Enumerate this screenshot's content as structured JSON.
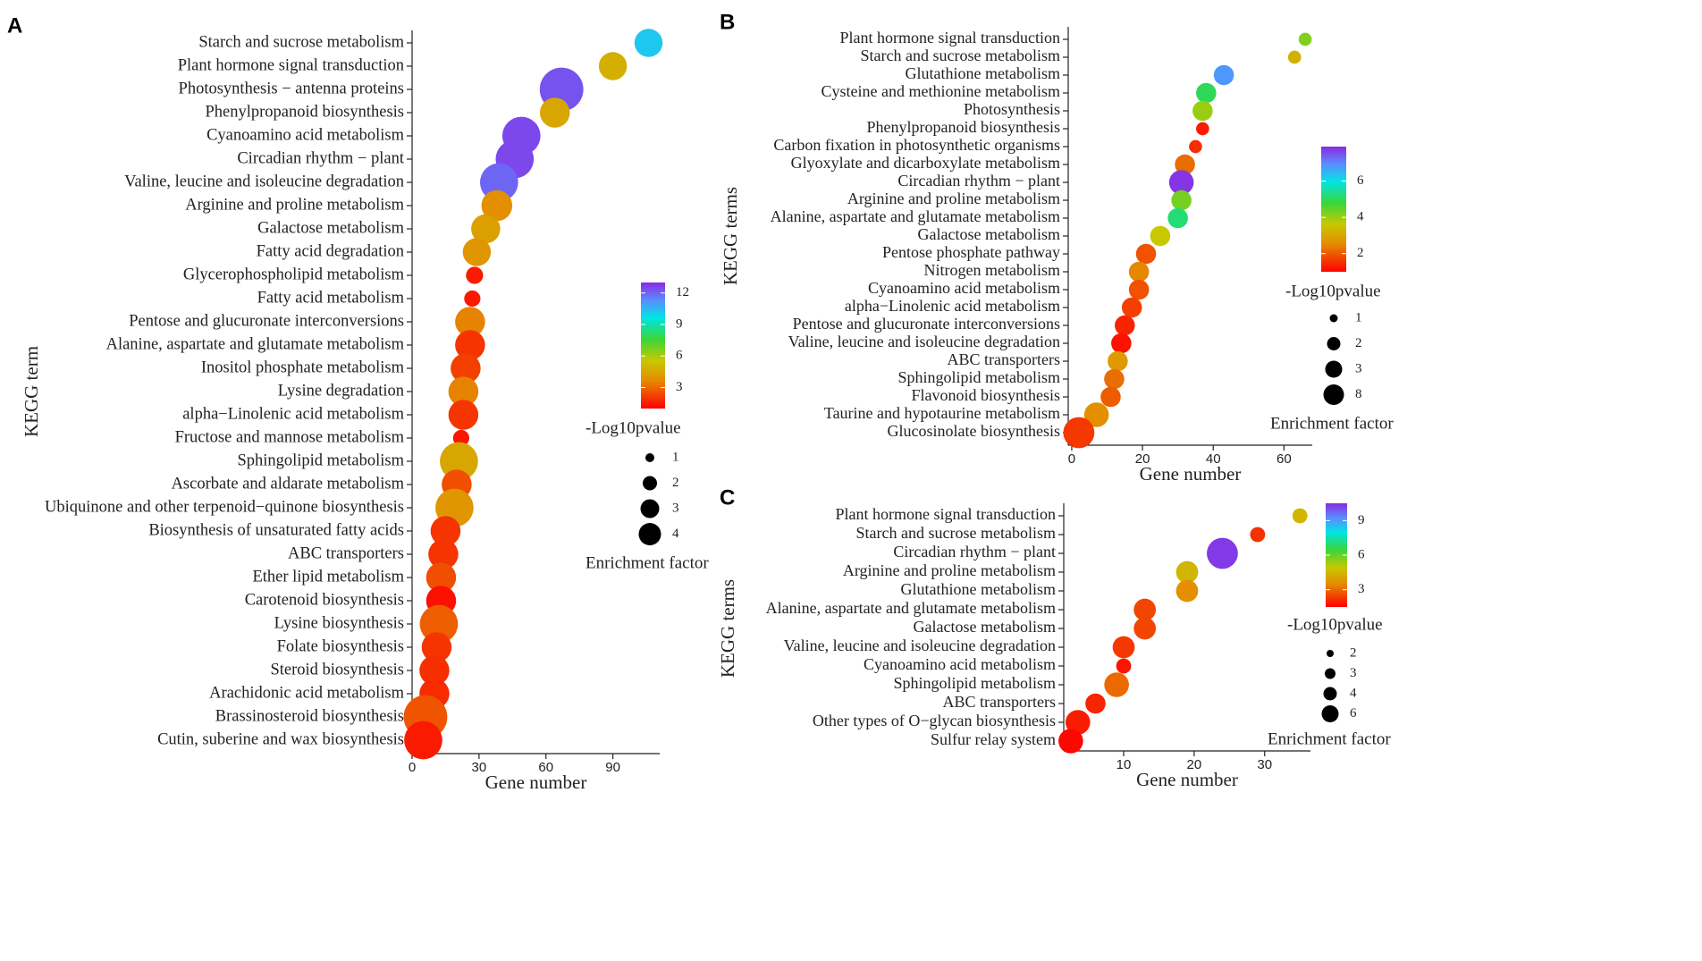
{
  "colors": {
    "scale": [
      "#ff0000",
      "#e58a00",
      "#c8c800",
      "#39d639",
      "#00e5e5",
      "#5a8cff",
      "#8a2be2"
    ]
  },
  "legend_titles": {
    "color": "-Log10pvalue",
    "size": "Enrichment factor"
  },
  "chart_data": [
    {
      "panel": "A",
      "type": "scatter",
      "xlabel": "Gene number",
      "ylabel": "KEGG term",
      "xlim": [
        0,
        111
      ],
      "xticks": [
        0,
        30,
        60,
        90
      ],
      "color_range": [
        1.0,
        13.0
      ],
      "color_ticks": [
        3,
        6,
        9,
        12
      ],
      "size_legend": [
        1,
        2,
        3,
        4
      ],
      "points": [
        {
          "term": "Starch and sucrose metabolism",
          "x": 106,
          "c": 10.2,
          "s": 2.3
        },
        {
          "term": "Plant hormone signal transduction",
          "x": 90,
          "c": 4.8,
          "s": 2.3
        },
        {
          "term": "Photosynthesis − antenna proteins",
          "x": 67,
          "c": 12.3,
          "s": 4.0
        },
        {
          "term": "Phenylpropanoid biosynthesis",
          "x": 64,
          "c": 4.5,
          "s": 2.5
        },
        {
          "term": "Cyanoamino acid metabolism",
          "x": 49,
          "c": 12.5,
          "s": 3.4
        },
        {
          "term": "Circadian rhythm − plant",
          "x": 46,
          "c": 12.5,
          "s": 3.4
        },
        {
          "term": "Valine, leucine and isoleucine degradation",
          "x": 39,
          "c": 12.0,
          "s": 3.4
        },
        {
          "term": "Arginine and proline metabolism",
          "x": 38,
          "c": 3.8,
          "s": 2.6
        },
        {
          "term": "Galactose metabolism",
          "x": 33,
          "c": 4.3,
          "s": 2.4
        },
        {
          "term": "Fatty acid degradation",
          "x": 29,
          "c": 4.0,
          "s": 2.3
        },
        {
          "term": "Glycerophospholipid metabolism",
          "x": 28,
          "c": 1.5,
          "s": 1.1
        },
        {
          "term": "Fatty acid metabolism",
          "x": 27,
          "c": 1.5,
          "s": 1.0
        },
        {
          "term": "Pentose and glucuronate interconversions",
          "x": 26,
          "c": 3.5,
          "s": 2.5
        },
        {
          "term": "Alanine, aspartate and glutamate metabolism",
          "x": 26,
          "c": 2.0,
          "s": 2.5
        },
        {
          "term": "Inositol phosphate metabolism",
          "x": 24,
          "c": 2.2,
          "s": 2.5
        },
        {
          "term": "Lysine degradation",
          "x": 23,
          "c": 3.5,
          "s": 2.5
        },
        {
          "term": "alpha−Linolenic acid metabolism",
          "x": 23,
          "c": 2.0,
          "s": 2.5
        },
        {
          "term": "Fructose and mannose metabolism",
          "x": 22,
          "c": 1.4,
          "s": 1.0
        },
        {
          "term": "Sphingolipid metabolism",
          "x": 21,
          "c": 4.5,
          "s": 3.4
        },
        {
          "term": "Ascorbate and aldarate metabolism",
          "x": 20,
          "c": 2.5,
          "s": 2.5
        },
        {
          "term": "Ubiquinone and other terpenoid−quinone biosynthesis",
          "x": 19,
          "c": 4.0,
          "s": 3.4
        },
        {
          "term": "Biosynthesis of unsaturated fatty acids",
          "x": 15,
          "c": 2.0,
          "s": 2.5
        },
        {
          "term": "ABC transporters",
          "x": 14,
          "c": 2.0,
          "s": 2.5
        },
        {
          "term": "Ether lipid metabolism",
          "x": 13,
          "c": 2.5,
          "s": 2.5
        },
        {
          "term": "Carotenoid biosynthesis",
          "x": 13,
          "c": 1.3,
          "s": 2.5
        },
        {
          "term": "Lysine biosynthesis",
          "x": 12,
          "c": 2.8,
          "s": 3.4
        },
        {
          "term": "Folate biosynthesis",
          "x": 11,
          "c": 2.0,
          "s": 2.5
        },
        {
          "term": "Steroid biosynthesis",
          "x": 10,
          "c": 1.9,
          "s": 2.5
        },
        {
          "term": "Arachidonic acid metabolism",
          "x": 10,
          "c": 1.8,
          "s": 2.5
        },
        {
          "term": "Brassinosteroid biosynthesis",
          "x": 6,
          "c": 2.6,
          "s": 4.0
        },
        {
          "term": "Cutin, suberine and wax biosynthesis",
          "x": 5,
          "c": 1.5,
          "s": 3.4
        }
      ]
    },
    {
      "panel": "B",
      "type": "scatter",
      "xlabel": "Gene number",
      "ylabel": "KEGG terms",
      "xlim": [
        -1,
        68
      ],
      "xticks": [
        0,
        20,
        40,
        60
      ],
      "color_range": [
        1.0,
        7.9
      ],
      "color_ticks": [
        2,
        4,
        6
      ],
      "size_legend": [
        1,
        2,
        3,
        8
      ],
      "points": [
        {
          "term": "Plant hormone signal transduction",
          "x": 66,
          "c": 4.2,
          "s": 1.2
        },
        {
          "term": "Starch and sucrose metabolism",
          "x": 63,
          "c": 3.2,
          "s": 1.2
        },
        {
          "term": "Glutathione metabolism",
          "x": 43,
          "c": 6.8,
          "s": 2.3
        },
        {
          "term": "Cysteine and methionine metabolism",
          "x": 38,
          "c": 5.0,
          "s": 2.3
        },
        {
          "term": "Photosynthesis",
          "x": 37,
          "c": 4.0,
          "s": 2.3
        },
        {
          "term": "Phenylpropanoid biosynthesis",
          "x": 37,
          "c": 1.3,
          "s": 1.2
        },
        {
          "term": "Carbon fixation in photosynthetic organisms",
          "x": 35,
          "c": 1.5,
          "s": 1.2
        },
        {
          "term": "Glyoxylate and dicarboxylate metabolism",
          "x": 32,
          "c": 2.2,
          "s": 2.3
        },
        {
          "term": "Circadian rhythm − plant",
          "x": 31,
          "c": 7.8,
          "s": 3.0
        },
        {
          "term": "Arginine and proline metabolism",
          "x": 31,
          "c": 4.3,
          "s": 2.3
        },
        {
          "term": "Alanine, aspartate and glutamate metabolism",
          "x": 30,
          "c": 5.2,
          "s": 2.3
        },
        {
          "term": "Galactose metabolism",
          "x": 25,
          "c": 3.6,
          "s": 2.3
        },
        {
          "term": "Pentose phosphate pathway",
          "x": 21,
          "c": 1.9,
          "s": 2.3
        },
        {
          "term": "Nitrogen metabolism",
          "x": 19,
          "c": 2.5,
          "s": 2.3
        },
        {
          "term": "Cyanoamino acid metabolism",
          "x": 19,
          "c": 1.9,
          "s": 2.3
        },
        {
          "term": "alpha−Linolenic acid metabolism",
          "x": 17,
          "c": 1.7,
          "s": 2.3
        },
        {
          "term": "Pentose and glucuronate interconversions",
          "x": 15,
          "c": 1.4,
          "s": 2.3
        },
        {
          "term": "Valine, leucine and isoleucine degradation",
          "x": 14,
          "c": 1.2,
          "s": 2.3
        },
        {
          "term": "ABC transporters",
          "x": 13,
          "c": 2.8,
          "s": 2.3
        },
        {
          "term": "Sphingolipid metabolism",
          "x": 12,
          "c": 2.2,
          "s": 2.3
        },
        {
          "term": "Flavonoid biosynthesis",
          "x": 11,
          "c": 2.0,
          "s": 2.3
        },
        {
          "term": "Taurine and hypotaurine metabolism",
          "x": 7,
          "c": 2.6,
          "s": 3.0
        },
        {
          "term": "Glucosinolate biosynthesis",
          "x": 2,
          "c": 1.6,
          "s": 4.0
        }
      ]
    },
    {
      "panel": "C",
      "type": "scatter",
      "xlabel": "Gene number",
      "ylabel": "KEGG terms",
      "xlim": [
        1.5,
        36.5
      ],
      "xticks": [
        10,
        20,
        30
      ],
      "color_range": [
        1.5,
        10.5
      ],
      "color_ticks": [
        3,
        6,
        9
      ],
      "size_legend": [
        2,
        3,
        4,
        6
      ],
      "points": [
        {
          "term": "Plant hormone signal transduction",
          "x": 35,
          "c": 4.5,
          "s": 1.5
        },
        {
          "term": "Starch and sucrose metabolism",
          "x": 29,
          "c": 2.2,
          "s": 1.5
        },
        {
          "term": "Circadian rhythm − plant",
          "x": 24,
          "c": 10.3,
          "s": 4.0
        },
        {
          "term": "Arginine and proline metabolism",
          "x": 19,
          "c": 4.5,
          "s": 2.6
        },
        {
          "term": "Glutathione metabolism",
          "x": 19,
          "c": 3.6,
          "s": 2.6
        },
        {
          "term": "Alanine, aspartate and glutamate metabolism",
          "x": 13,
          "c": 2.5,
          "s": 2.6
        },
        {
          "term": "Galactose metabolism",
          "x": 13,
          "c": 2.5,
          "s": 2.6
        },
        {
          "term": "Valine, leucine and isoleucine degradation",
          "x": 10,
          "c": 2.3,
          "s": 2.6
        },
        {
          "term": "Cyanoamino acid metabolism",
          "x": 10,
          "c": 1.8,
          "s": 1.5
        },
        {
          "term": "Sphingolipid metabolism",
          "x": 9,
          "c": 3.0,
          "s": 3.0
        },
        {
          "term": "ABC transporters",
          "x": 6,
          "c": 2.0,
          "s": 2.3
        },
        {
          "term": "Other types of O−glycan biosynthesis",
          "x": 3.5,
          "c": 1.9,
          "s": 3.0
        },
        {
          "term": "Sulfur relay system",
          "x": 2.5,
          "c": 1.6,
          "s": 3.0
        }
      ]
    }
  ]
}
